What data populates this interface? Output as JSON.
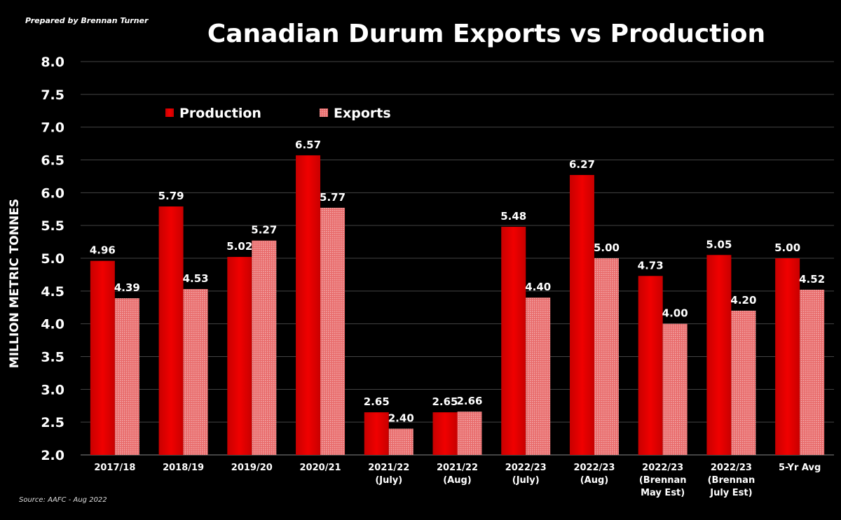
{
  "credit": "Prepared by Brennan Turner",
  "source": "Source: AAFC - Aug 2022",
  "colors": {
    "production": "#e00000",
    "exports": "#e86060",
    "background": "#000000",
    "grid": "#555555",
    "text": "#ffffff"
  },
  "chart_data": {
    "type": "bar",
    "title": "Canadian Durum Exports vs Production",
    "xlabel": "",
    "ylabel": "MILLION METRIC TONNES",
    "ylim": [
      2.0,
      8.0
    ],
    "yticks": [
      "2.0",
      "2.5",
      "3.0",
      "3.5",
      "4.0",
      "4.5",
      "5.0",
      "5.5",
      "6.0",
      "6.5",
      "7.0",
      "7.5",
      "8.0"
    ],
    "grid": true,
    "legend_position": "top-left",
    "categories": [
      [
        "2017/18"
      ],
      [
        "2018/19"
      ],
      [
        "2019/20"
      ],
      [
        "2020/21"
      ],
      [
        "2021/22",
        "(July)"
      ],
      [
        "2021/22",
        "(Aug)"
      ],
      [
        "2022/23",
        "(July)"
      ],
      [
        "2022/23",
        "(Aug)"
      ],
      [
        "2022/23",
        "(Brennan",
        "May Est)"
      ],
      [
        "2022/23",
        "(Brennan",
        "July Est)"
      ],
      [
        "5-Yr Avg"
      ]
    ],
    "series": [
      {
        "name": "Production",
        "values": [
          4.96,
          5.79,
          5.02,
          6.57,
          2.65,
          2.65,
          5.48,
          6.27,
          4.73,
          5.05,
          5.0
        ],
        "labels": [
          "4.96",
          "5.79",
          "5.02",
          "6.57",
          "2.65",
          "2.65",
          "5.48",
          "6.27",
          "4.73",
          "5.05",
          "5.00"
        ]
      },
      {
        "name": "Exports",
        "values": [
          4.39,
          4.53,
          5.27,
          5.77,
          2.4,
          2.66,
          4.4,
          5.0,
          4.0,
          4.2,
          4.52
        ],
        "labels": [
          "4.39",
          "4.53",
          "5.27",
          "5.77",
          "2.40",
          "2.66",
          "4.40",
          "5.00",
          "4.00",
          "4.20",
          "4.52"
        ]
      }
    ]
  }
}
